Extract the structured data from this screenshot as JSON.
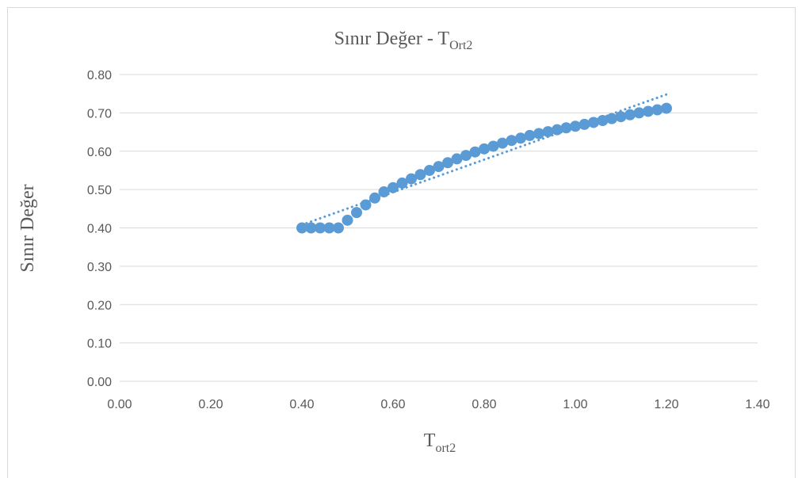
{
  "chart_data": {
    "type": "scatter",
    "title": {
      "main": "Sınır Değer - T",
      "sub": "Ort2"
    },
    "xlabel": {
      "main": "T",
      "sub": "ort2"
    },
    "ylabel": "Sınır Değer",
    "xlim": [
      0,
      1.4
    ],
    "ylim": [
      0,
      0.8
    ],
    "x_ticks": [
      "0.00",
      "0.20",
      "0.40",
      "0.60",
      "0.80",
      "1.00",
      "1.20",
      "1.40"
    ],
    "y_ticks": [
      "0.00",
      "0.10",
      "0.20",
      "0.30",
      "0.40",
      "0.50",
      "0.60",
      "0.70",
      "0.80"
    ],
    "x_tick_values": [
      0,
      0.2,
      0.4,
      0.6,
      0.8,
      1.0,
      1.2,
      1.4
    ],
    "y_tick_values": [
      0,
      0.1,
      0.2,
      0.3,
      0.4,
      0.5,
      0.6,
      0.7,
      0.8
    ],
    "grid": "horizontal",
    "legend": "none",
    "series": [
      {
        "color": "#5b9bd5",
        "points": [
          [
            0.4,
            0.4
          ],
          [
            0.42,
            0.4
          ],
          [
            0.44,
            0.4
          ],
          [
            0.46,
            0.4
          ],
          [
            0.48,
            0.4
          ],
          [
            0.5,
            0.42
          ],
          [
            0.52,
            0.44
          ],
          [
            0.54,
            0.46
          ],
          [
            0.56,
            0.478
          ],
          [
            0.58,
            0.494
          ],
          [
            0.6,
            0.505
          ],
          [
            0.62,
            0.517
          ],
          [
            0.64,
            0.528
          ],
          [
            0.66,
            0.539
          ],
          [
            0.68,
            0.55
          ],
          [
            0.7,
            0.56
          ],
          [
            0.72,
            0.57
          ],
          [
            0.74,
            0.58
          ],
          [
            0.76,
            0.589
          ],
          [
            0.78,
            0.598
          ],
          [
            0.8,
            0.606
          ],
          [
            0.82,
            0.613
          ],
          [
            0.84,
            0.621
          ],
          [
            0.86,
            0.628
          ],
          [
            0.88,
            0.634
          ],
          [
            0.9,
            0.641
          ],
          [
            0.92,
            0.646
          ],
          [
            0.94,
            0.651
          ],
          [
            0.96,
            0.656
          ],
          [
            0.98,
            0.661
          ],
          [
            1.0,
            0.665
          ],
          [
            1.02,
            0.67
          ],
          [
            1.04,
            0.675
          ],
          [
            1.06,
            0.68
          ],
          [
            1.08,
            0.685
          ],
          [
            1.1,
            0.69
          ],
          [
            1.12,
            0.695
          ],
          [
            1.14,
            0.7
          ],
          [
            1.16,
            0.704
          ],
          [
            1.18,
            0.708
          ],
          [
            1.2,
            0.712
          ]
        ]
      }
    ],
    "trendline": {
      "type": "linear",
      "style": "dotted",
      "color": "#5b9bd5",
      "points": [
        [
          0.4,
          0.408
        ],
        [
          1.2,
          0.748
        ]
      ]
    }
  }
}
